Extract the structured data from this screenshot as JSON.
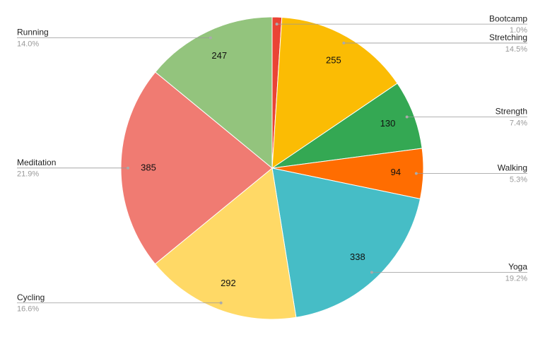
{
  "chart_data": {
    "type": "pie",
    "categories": [
      "Bootcamp",
      "Stretching",
      "Strength",
      "Walking",
      "Yoga",
      "Cycling",
      "Meditation",
      "Running"
    ],
    "values": [
      18,
      255,
      130,
      94,
      338,
      292,
      385,
      247
    ],
    "percent_labels": [
      "1.0%",
      "14.5%",
      "7.4%",
      "5.3%",
      "19.2%",
      "16.6%",
      "21.9%",
      "14.0%"
    ],
    "colors": [
      "#ea4335",
      "#fbbc04",
      "#34a853",
      "#ff6d01",
      "#46bdc6",
      "#ffd966",
      "#f07b72",
      "#93c47d"
    ]
  }
}
